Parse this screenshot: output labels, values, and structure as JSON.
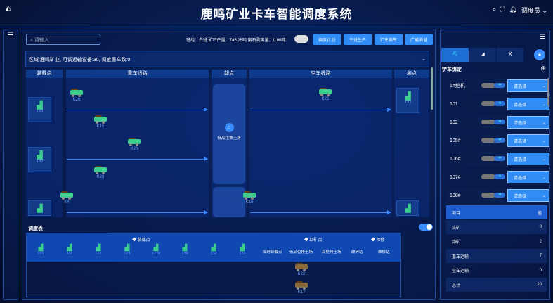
{
  "header": {
    "title": "鹿鸣矿业卡车智能调度系统",
    "user": "调度员",
    "icons": [
      "search-icon",
      "fullscreen-icon",
      "bell-icon",
      "chevron-down-icon"
    ]
  },
  "toolbar": {
    "search_placeholder": "请输入",
    "stats": "班组：白班 矿石产量：745.25吨 废石剥离量：0.00吨",
    "switch_on": false,
    "buttons": [
      "调度计划",
      "三班生产",
      "铲车换车",
      "广播消息"
    ]
  },
  "info": "区域:鹿鸣矿业, 可调运输设备:30, 调度重车数:0",
  "board": {
    "columns": [
      "装载点",
      "重车线路",
      "卸点",
      "空车线路",
      "装点"
    ],
    "loaders_left": [
      "133",
      "132",
      ""
    ],
    "loaders_right": [
      "132",
      ""
    ],
    "dump_site": "低品位堆土场",
    "heavy_trucks": [
      "K26",
      "K15",
      "K20",
      "K28",
      "K4"
    ],
    "empty_trucks": [
      "K25",
      "K10"
    ]
  },
  "schedule": {
    "title": "调度表",
    "toggle_on": true,
    "groups": [
      "装载点",
      "卸矿点",
      "检修"
    ],
    "loaders": [
      "101",
      "111",
      "122",
      "123",
      "127#",
      "130",
      "132",
      "133"
    ],
    "dump_points": [
      "临时卸载点",
      "低品位排土场",
      "高处排土场",
      "破碎站",
      "维修站"
    ],
    "trucks": [
      "K22",
      "K17"
    ]
  },
  "right": {
    "tabs": [
      "shovel",
      "excavator",
      "drill"
    ],
    "section": "铲车绑定",
    "rows": [
      {
        "name": "1#挖机",
        "select": "请选择"
      },
      {
        "name": "101",
        "select": "请选择"
      },
      {
        "name": "102",
        "select": "请选择"
      },
      {
        "name": "105#",
        "select": "请选择"
      },
      {
        "name": "106#",
        "select": "请选择"
      },
      {
        "name": "107#",
        "select": "请选择"
      },
      {
        "name": "108#",
        "select": "请选择"
      }
    ],
    "stats_header": [
      "项目",
      "值"
    ],
    "stats": [
      {
        "k": "装矿",
        "v": "0"
      },
      {
        "k": "卸矿",
        "v": "2"
      },
      {
        "k": "重车运输",
        "v": "7"
      },
      {
        "k": "空车运输",
        "v": "0"
      },
      {
        "k": "总计",
        "v": "20"
      }
    ]
  },
  "colors": {
    "accent": "#2f8df5",
    "truck": "#3ccf8e",
    "bg": "#061640"
  }
}
